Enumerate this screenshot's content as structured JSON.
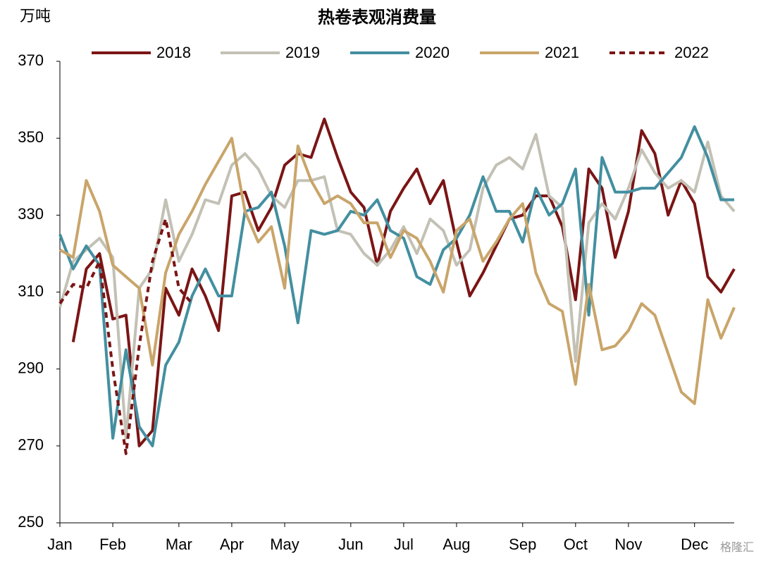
{
  "chart_data": {
    "type": "line",
    "title": "热卷表观消费量",
    "y_label": "万吨",
    "watermark": "格隆汇",
    "categories": [
      "Jan",
      null,
      null,
      null,
      "Feb",
      null,
      null,
      null,
      null,
      "Mar",
      null,
      null,
      null,
      "Apr",
      null,
      null,
      null,
      "May",
      null,
      null,
      null,
      null,
      "Jun",
      null,
      null,
      null,
      "Jul",
      null,
      null,
      null,
      "Aug",
      null,
      null,
      null,
      null,
      "Sep",
      null,
      null,
      null,
      "Oct",
      null,
      null,
      null,
      "Nov",
      null,
      null,
      null,
      null,
      "Dec",
      null,
      null,
      null
    ],
    "series": [
      {
        "name": "2018",
        "color": "#7b1515",
        "linestyle": "solid",
        "values": [
          null,
          297,
          316,
          320,
          303,
          304,
          270,
          274,
          311,
          304,
          316,
          309,
          300,
          335,
          336,
          326,
          332,
          343,
          346,
          345,
          355,
          345,
          336,
          332,
          317,
          331,
          337,
          342,
          333,
          339,
          323,
          309,
          315,
          322,
          329,
          330,
          335,
          335,
          327,
          308,
          342,
          337,
          319,
          331,
          352,
          346,
          330,
          339,
          333,
          314,
          310,
          316
        ]
      },
      {
        "name": "2019",
        "color": "#c3c1b5",
        "linestyle": "solid",
        "values": [
          306,
          318,
          321,
          324,
          319,
          272,
          311,
          316,
          334,
          318,
          325,
          334,
          333,
          343,
          346,
          342,
          335,
          332,
          339,
          339,
          340,
          326,
          325,
          320,
          317,
          321,
          327,
          320,
          329,
          326,
          317,
          321,
          337,
          343,
          345,
          342,
          351,
          335,
          332,
          292,
          328,
          333,
          329,
          337,
          347,
          341,
          337,
          339,
          336,
          349,
          335,
          331
        ]
      },
      {
        "name": "2020",
        "color": "#438fa0",
        "linestyle": "solid",
        "values": [
          325,
          316,
          322,
          317,
          272,
          295,
          275,
          270,
          291,
          297,
          309,
          316,
          309,
          309,
          331,
          332,
          336,
          322,
          302,
          326,
          325,
          326,
          331,
          330,
          334,
          326,
          324,
          314,
          312,
          321,
          324,
          330,
          340,
          331,
          331,
          323,
          337,
          330,
          333,
          342,
          304,
          345,
          336,
          336,
          337,
          337,
          341,
          345,
          353,
          345,
          334,
          334
        ]
      },
      {
        "name": "2021",
        "color": "#c9a56a",
        "linestyle": "solid",
        "values": [
          321,
          319,
          339,
          331,
          317,
          314,
          311,
          291,
          315,
          325,
          331,
          338,
          344,
          350,
          331,
          323,
          327,
          311,
          348,
          339,
          333,
          335,
          333,
          328,
          328,
          319,
          326,
          324,
          318,
          310,
          326,
          329,
          318,
          323,
          329,
          333,
          315,
          307,
          305,
          286,
          312,
          295,
          296,
          300,
          307,
          304,
          294,
          284,
          281,
          308,
          298,
          306
        ]
      },
      {
        "name": "2022",
        "color": "#7b1515",
        "linestyle": "dashed",
        "values": [
          307,
          312,
          311,
          318,
          290,
          268,
          296,
          318,
          329,
          311,
          307,
          null,
          null,
          null,
          null,
          null,
          null,
          null,
          null,
          null,
          null,
          null,
          null,
          null,
          null,
          null,
          null,
          null,
          null,
          null,
          null,
          null,
          null,
          null,
          null,
          null,
          null,
          null,
          null,
          null,
          null,
          null,
          null,
          null,
          null,
          null,
          null,
          null,
          null,
          null,
          null,
          null
        ]
      }
    ],
    "ylim": [
      250,
      370
    ],
    "yticks": [
      250,
      270,
      290,
      310,
      330,
      350,
      370
    ],
    "legend": "top"
  }
}
